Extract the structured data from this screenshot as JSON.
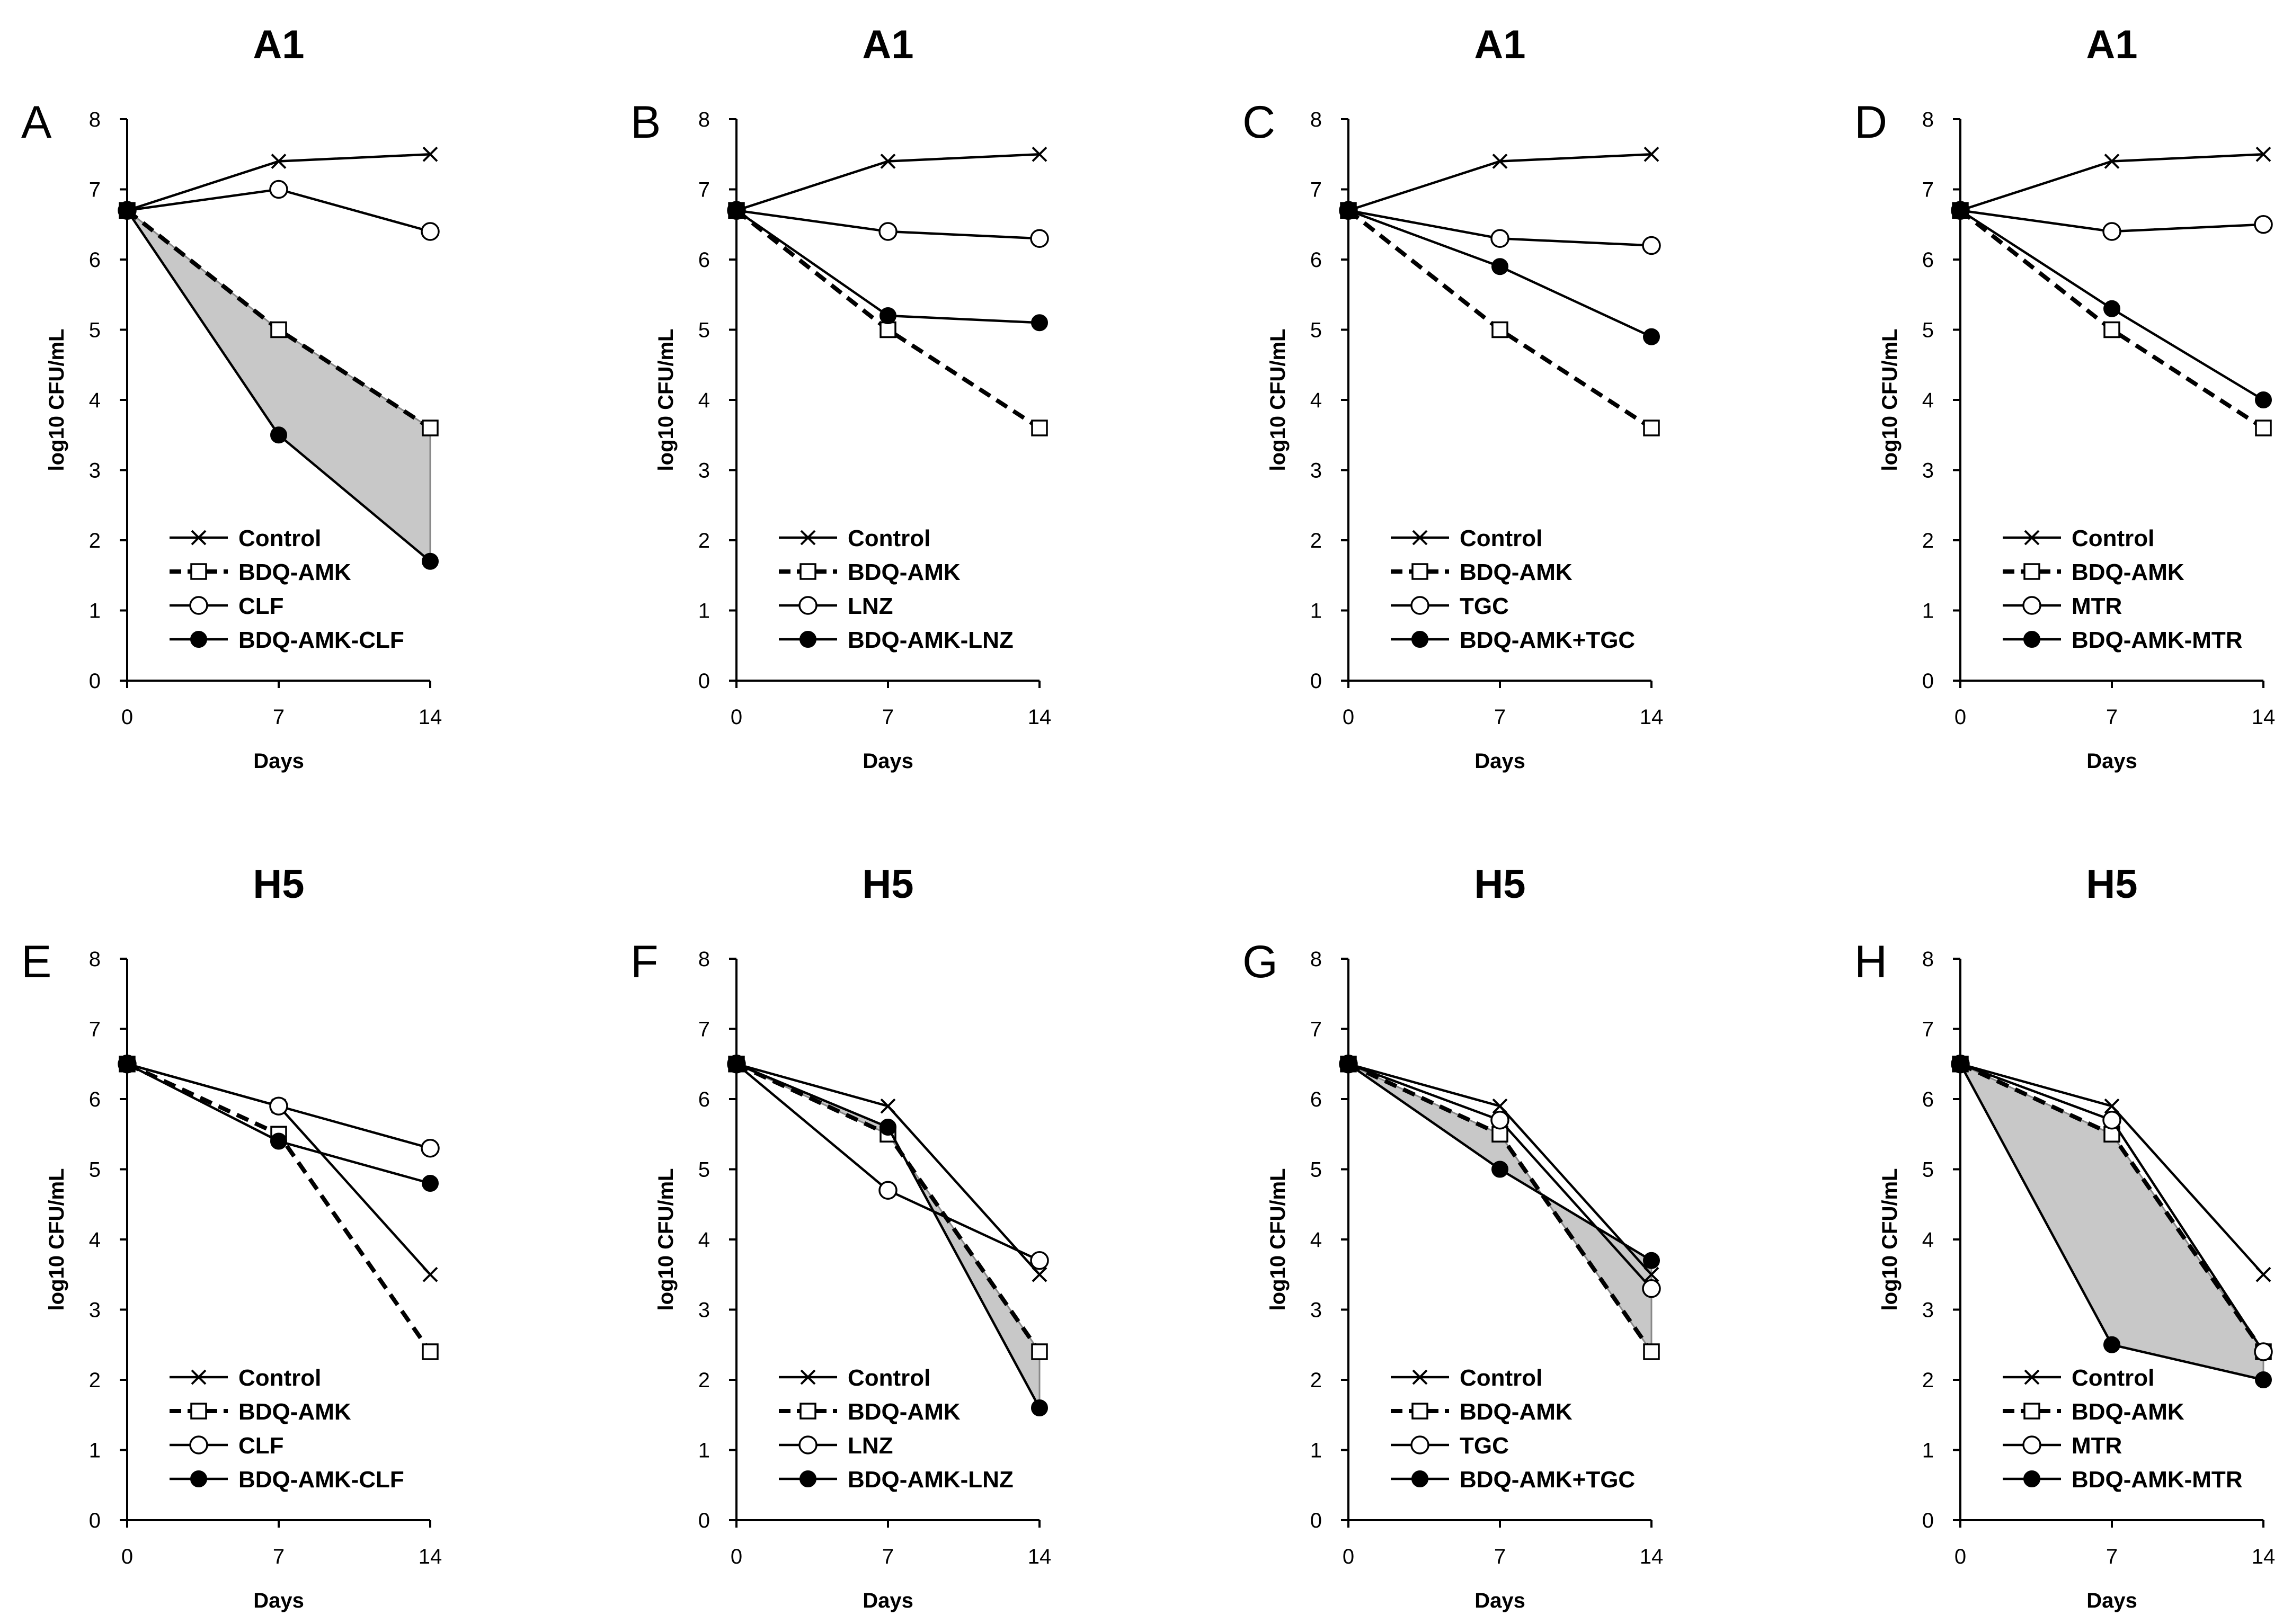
{
  "chart_data": [
    {
      "panel": "A",
      "title": "A1",
      "type": "line",
      "xlabel": "Days",
      "ylabel": "log10 CFU/mL",
      "x": [
        0,
        7,
        14
      ],
      "xticks": [
        "0",
        "7",
        "14"
      ],
      "ylim": [
        0,
        8
      ],
      "yticks": [
        "0",
        "1",
        "2",
        "3",
        "4",
        "5",
        "6",
        "7",
        "8"
      ],
      "series": [
        {
          "name": "Control",
          "marker": "x",
          "dash": "solid",
          "values": [
            6.7,
            7.4,
            7.5
          ]
        },
        {
          "name": "BDQ-AMK",
          "marker": "square-open",
          "dash": "dashed",
          "values": [
            6.7,
            5.0,
            3.6
          ]
        },
        {
          "name": "CLF",
          "marker": "circle-open",
          "dash": "solid",
          "values": [
            6.7,
            7.0,
            6.4
          ]
        },
        {
          "name": "BDQ-AMK-CLF",
          "marker": "circle-filled",
          "dash": "solid",
          "values": [
            6.7,
            3.5,
            1.7
          ]
        }
      ],
      "shaded_between": [
        "BDQ-AMK",
        "BDQ-AMK-CLF"
      ],
      "legend_position": "bottom-center"
    },
    {
      "panel": "B",
      "title": "A1",
      "type": "line",
      "xlabel": "Days",
      "ylabel": "log10 CFU/mL",
      "x": [
        0,
        7,
        14
      ],
      "xticks": [
        "0",
        "7",
        "14"
      ],
      "ylim": [
        0,
        8
      ],
      "yticks": [
        "0",
        "1",
        "2",
        "3",
        "4",
        "5",
        "6",
        "7",
        "8"
      ],
      "series": [
        {
          "name": "Control",
          "marker": "x",
          "dash": "solid",
          "values": [
            6.7,
            7.4,
            7.5
          ]
        },
        {
          "name": "BDQ-AMK",
          "marker": "square-open",
          "dash": "dashed",
          "values": [
            6.7,
            5.0,
            3.6
          ]
        },
        {
          "name": "LNZ",
          "marker": "circle-open",
          "dash": "solid",
          "values": [
            6.7,
            6.4,
            6.3
          ]
        },
        {
          "name": "BDQ-AMK-LNZ",
          "marker": "circle-filled",
          "dash": "solid",
          "values": [
            6.7,
            5.2,
            5.1
          ]
        }
      ],
      "legend_position": "bottom-center"
    },
    {
      "panel": "C",
      "title": "A1",
      "type": "line",
      "xlabel": "Days",
      "ylabel": "log10 CFU/mL",
      "x": [
        0,
        7,
        14
      ],
      "xticks": [
        "0",
        "7",
        "14"
      ],
      "ylim": [
        0,
        8
      ],
      "yticks": [
        "0",
        "1",
        "2",
        "3",
        "4",
        "5",
        "6",
        "7",
        "8"
      ],
      "series": [
        {
          "name": "Control",
          "marker": "x",
          "dash": "solid",
          "values": [
            6.7,
            7.4,
            7.5
          ]
        },
        {
          "name": "BDQ-AMK",
          "marker": "square-open",
          "dash": "dashed",
          "values": [
            6.7,
            5.0,
            3.6
          ]
        },
        {
          "name": "TGC",
          "marker": "circle-open",
          "dash": "solid",
          "values": [
            6.7,
            6.3,
            6.2
          ]
        },
        {
          "name": "BDQ-AMK+TGC",
          "marker": "circle-filled",
          "dash": "solid",
          "values": [
            6.7,
            5.9,
            4.9
          ]
        }
      ],
      "legend_position": "bottom-center"
    },
    {
      "panel": "D",
      "title": "A1",
      "type": "line",
      "xlabel": "Days",
      "ylabel": "log10 CFU/mL",
      "x": [
        0,
        7,
        14
      ],
      "xticks": [
        "0",
        "7",
        "14"
      ],
      "ylim": [
        0,
        8
      ],
      "yticks": [
        "0",
        "1",
        "2",
        "3",
        "4",
        "5",
        "6",
        "7",
        "8"
      ],
      "series": [
        {
          "name": "Control",
          "marker": "x",
          "dash": "solid",
          "values": [
            6.7,
            7.4,
            7.5
          ]
        },
        {
          "name": "BDQ-AMK",
          "marker": "square-open",
          "dash": "dashed",
          "values": [
            6.7,
            5.0,
            3.6
          ]
        },
        {
          "name": "MTR",
          "marker": "circle-open",
          "dash": "solid",
          "values": [
            6.7,
            6.4,
            6.5
          ]
        },
        {
          "name": "BDQ-AMK-MTR",
          "marker": "circle-filled",
          "dash": "solid",
          "values": [
            6.7,
            5.3,
            4.0
          ]
        }
      ],
      "legend_position": "bottom-center"
    },
    {
      "panel": "E",
      "title": "H5",
      "type": "line",
      "xlabel": "Days",
      "ylabel": "log10 CFU/mL",
      "x": [
        0,
        7,
        14
      ],
      "xticks": [
        "0",
        "7",
        "14"
      ],
      "ylim": [
        0,
        8
      ],
      "yticks": [
        "0",
        "1",
        "2",
        "3",
        "4",
        "5",
        "6",
        "7",
        "8"
      ],
      "series": [
        {
          "name": "Control",
          "marker": "x",
          "dash": "solid",
          "values": [
            6.5,
            5.9,
            3.5
          ]
        },
        {
          "name": "BDQ-AMK",
          "marker": "square-open",
          "dash": "dashed",
          "values": [
            6.5,
            5.5,
            2.4
          ]
        },
        {
          "name": "CLF",
          "marker": "circle-open",
          "dash": "solid",
          "values": [
            6.5,
            5.9,
            5.3
          ]
        },
        {
          "name": "BDQ-AMK-CLF",
          "marker": "circle-filled",
          "dash": "solid",
          "values": [
            6.5,
            5.4,
            4.8
          ]
        }
      ],
      "legend_position": "bottom-center"
    },
    {
      "panel": "F",
      "title": "H5",
      "type": "line",
      "xlabel": "Days",
      "ylabel": "log10 CFU/mL",
      "x": [
        0,
        7,
        14
      ],
      "xticks": [
        "0",
        "7",
        "14"
      ],
      "ylim": [
        0,
        8
      ],
      "yticks": [
        "0",
        "1",
        "2",
        "3",
        "4",
        "5",
        "6",
        "7",
        "8"
      ],
      "series": [
        {
          "name": "Control",
          "marker": "x",
          "dash": "solid",
          "values": [
            6.5,
            5.9,
            3.5
          ]
        },
        {
          "name": "BDQ-AMK",
          "marker": "square-open",
          "dash": "dashed",
          "values": [
            6.5,
            5.5,
            2.4
          ]
        },
        {
          "name": "LNZ",
          "marker": "circle-open",
          "dash": "solid",
          "values": [
            6.5,
            4.7,
            3.7
          ]
        },
        {
          "name": "BDQ-AMK-LNZ",
          "marker": "circle-filled",
          "dash": "solid",
          "values": [
            6.5,
            5.6,
            1.6
          ]
        }
      ],
      "shaded_between": [
        "BDQ-AMK",
        "BDQ-AMK-LNZ"
      ],
      "legend_position": "bottom-center"
    },
    {
      "panel": "G",
      "title": "H5",
      "type": "line",
      "xlabel": "Days",
      "ylabel": "log10 CFU/mL",
      "x": [
        0,
        7,
        14
      ],
      "xticks": [
        "0",
        "7",
        "14"
      ],
      "ylim": [
        0,
        8
      ],
      "yticks": [
        "0",
        "1",
        "2",
        "3",
        "4",
        "5",
        "6",
        "7",
        "8"
      ],
      "series": [
        {
          "name": "Control",
          "marker": "x",
          "dash": "solid",
          "values": [
            6.5,
            5.9,
            3.5
          ]
        },
        {
          "name": "BDQ-AMK",
          "marker": "square-open",
          "dash": "dashed",
          "values": [
            6.5,
            5.5,
            2.4
          ]
        },
        {
          "name": "TGC",
          "marker": "circle-open",
          "dash": "solid",
          "values": [
            6.5,
            5.7,
            3.3
          ]
        },
        {
          "name": "BDQ-AMK+TGC",
          "marker": "circle-filled",
          "dash": "solid",
          "values": [
            6.5,
            5.0,
            3.7
          ]
        }
      ],
      "shaded_between": [
        "BDQ-AMK",
        "BDQ-AMK+TGC"
      ],
      "legend_position": "bottom-center"
    },
    {
      "panel": "H",
      "title": "H5",
      "type": "line",
      "xlabel": "Days",
      "ylabel": "log10 CFU/mL",
      "x": [
        0,
        7,
        14
      ],
      "xticks": [
        "0",
        "7",
        "14"
      ],
      "ylim": [
        0,
        8
      ],
      "yticks": [
        "0",
        "1",
        "2",
        "3",
        "4",
        "5",
        "6",
        "7",
        "8"
      ],
      "series": [
        {
          "name": "Control",
          "marker": "x",
          "dash": "solid",
          "values": [
            6.5,
            5.9,
            3.5
          ]
        },
        {
          "name": "BDQ-AMK",
          "marker": "square-open",
          "dash": "dashed",
          "values": [
            6.5,
            5.5,
            2.4
          ]
        },
        {
          "name": "MTR",
          "marker": "circle-open",
          "dash": "solid",
          "values": [
            6.5,
            5.7,
            2.4
          ]
        },
        {
          "name": "BDQ-AMK-MTR",
          "marker": "circle-filled",
          "dash": "solid",
          "values": [
            6.5,
            2.5,
            2.0
          ]
        }
      ],
      "shaded_between": [
        "BDQ-AMK",
        "BDQ-AMK-MTR"
      ],
      "legend_position": "bottom-center"
    }
  ],
  "colors": {
    "line": "#000000",
    "shade": "#c8c8c8",
    "background": "#ffffff"
  }
}
